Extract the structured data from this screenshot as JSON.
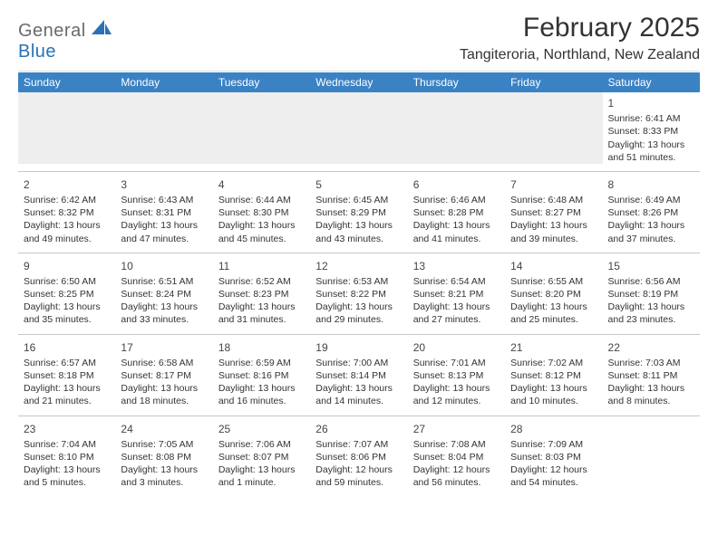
{
  "logo": {
    "word1": "General",
    "word2": "Blue"
  },
  "title": "February 2025",
  "location": "Tangiteroria, Northland, New Zealand",
  "day_names": [
    "Sunday",
    "Monday",
    "Tuesday",
    "Wednesday",
    "Thursday",
    "Friday",
    "Saturday"
  ],
  "weeks": [
    [
      null,
      null,
      null,
      null,
      null,
      null,
      {
        "n": "1",
        "sunrise": "Sunrise: 6:41 AM",
        "sunset": "Sunset: 8:33 PM",
        "daylight": "Daylight: 13 hours and 51 minutes."
      }
    ],
    [
      {
        "n": "2",
        "sunrise": "Sunrise: 6:42 AM",
        "sunset": "Sunset: 8:32 PM",
        "daylight": "Daylight: 13 hours and 49 minutes."
      },
      {
        "n": "3",
        "sunrise": "Sunrise: 6:43 AM",
        "sunset": "Sunset: 8:31 PM",
        "daylight": "Daylight: 13 hours and 47 minutes."
      },
      {
        "n": "4",
        "sunrise": "Sunrise: 6:44 AM",
        "sunset": "Sunset: 8:30 PM",
        "daylight": "Daylight: 13 hours and 45 minutes."
      },
      {
        "n": "5",
        "sunrise": "Sunrise: 6:45 AM",
        "sunset": "Sunset: 8:29 PM",
        "daylight": "Daylight: 13 hours and 43 minutes."
      },
      {
        "n": "6",
        "sunrise": "Sunrise: 6:46 AM",
        "sunset": "Sunset: 8:28 PM",
        "daylight": "Daylight: 13 hours and 41 minutes."
      },
      {
        "n": "7",
        "sunrise": "Sunrise: 6:48 AM",
        "sunset": "Sunset: 8:27 PM",
        "daylight": "Daylight: 13 hours and 39 minutes."
      },
      {
        "n": "8",
        "sunrise": "Sunrise: 6:49 AM",
        "sunset": "Sunset: 8:26 PM",
        "daylight": "Daylight: 13 hours and 37 minutes."
      }
    ],
    [
      {
        "n": "9",
        "sunrise": "Sunrise: 6:50 AM",
        "sunset": "Sunset: 8:25 PM",
        "daylight": "Daylight: 13 hours and 35 minutes."
      },
      {
        "n": "10",
        "sunrise": "Sunrise: 6:51 AM",
        "sunset": "Sunset: 8:24 PM",
        "daylight": "Daylight: 13 hours and 33 minutes."
      },
      {
        "n": "11",
        "sunrise": "Sunrise: 6:52 AM",
        "sunset": "Sunset: 8:23 PM",
        "daylight": "Daylight: 13 hours and 31 minutes."
      },
      {
        "n": "12",
        "sunrise": "Sunrise: 6:53 AM",
        "sunset": "Sunset: 8:22 PM",
        "daylight": "Daylight: 13 hours and 29 minutes."
      },
      {
        "n": "13",
        "sunrise": "Sunrise: 6:54 AM",
        "sunset": "Sunset: 8:21 PM",
        "daylight": "Daylight: 13 hours and 27 minutes."
      },
      {
        "n": "14",
        "sunrise": "Sunrise: 6:55 AM",
        "sunset": "Sunset: 8:20 PM",
        "daylight": "Daylight: 13 hours and 25 minutes."
      },
      {
        "n": "15",
        "sunrise": "Sunrise: 6:56 AM",
        "sunset": "Sunset: 8:19 PM",
        "daylight": "Daylight: 13 hours and 23 minutes."
      }
    ],
    [
      {
        "n": "16",
        "sunrise": "Sunrise: 6:57 AM",
        "sunset": "Sunset: 8:18 PM",
        "daylight": "Daylight: 13 hours and 21 minutes."
      },
      {
        "n": "17",
        "sunrise": "Sunrise: 6:58 AM",
        "sunset": "Sunset: 8:17 PM",
        "daylight": "Daylight: 13 hours and 18 minutes."
      },
      {
        "n": "18",
        "sunrise": "Sunrise: 6:59 AM",
        "sunset": "Sunset: 8:16 PM",
        "daylight": "Daylight: 13 hours and 16 minutes."
      },
      {
        "n": "19",
        "sunrise": "Sunrise: 7:00 AM",
        "sunset": "Sunset: 8:14 PM",
        "daylight": "Daylight: 13 hours and 14 minutes."
      },
      {
        "n": "20",
        "sunrise": "Sunrise: 7:01 AM",
        "sunset": "Sunset: 8:13 PM",
        "daylight": "Daylight: 13 hours and 12 minutes."
      },
      {
        "n": "21",
        "sunrise": "Sunrise: 7:02 AM",
        "sunset": "Sunset: 8:12 PM",
        "daylight": "Daylight: 13 hours and 10 minutes."
      },
      {
        "n": "22",
        "sunrise": "Sunrise: 7:03 AM",
        "sunset": "Sunset: 8:11 PM",
        "daylight": "Daylight: 13 hours and 8 minutes."
      }
    ],
    [
      {
        "n": "23",
        "sunrise": "Sunrise: 7:04 AM",
        "sunset": "Sunset: 8:10 PM",
        "daylight": "Daylight: 13 hours and 5 minutes."
      },
      {
        "n": "24",
        "sunrise": "Sunrise: 7:05 AM",
        "sunset": "Sunset: 8:08 PM",
        "daylight": "Daylight: 13 hours and 3 minutes."
      },
      {
        "n": "25",
        "sunrise": "Sunrise: 7:06 AM",
        "sunset": "Sunset: 8:07 PM",
        "daylight": "Daylight: 13 hours and 1 minute."
      },
      {
        "n": "26",
        "sunrise": "Sunrise: 7:07 AM",
        "sunset": "Sunset: 8:06 PM",
        "daylight": "Daylight: 12 hours and 59 minutes."
      },
      {
        "n": "27",
        "sunrise": "Sunrise: 7:08 AM",
        "sunset": "Sunset: 8:04 PM",
        "daylight": "Daylight: 12 hours and 56 minutes."
      },
      {
        "n": "28",
        "sunrise": "Sunrise: 7:09 AM",
        "sunset": "Sunset: 8:03 PM",
        "daylight": "Daylight: 12 hours and 54 minutes."
      },
      null
    ]
  ],
  "colors": {
    "header_bg": "#3a82c4",
    "logo_blue": "#2a72b5",
    "logo_gray": "#6a6a6a",
    "empty_row_bg": "#eeeeee",
    "divider": "#c5c7c9"
  }
}
